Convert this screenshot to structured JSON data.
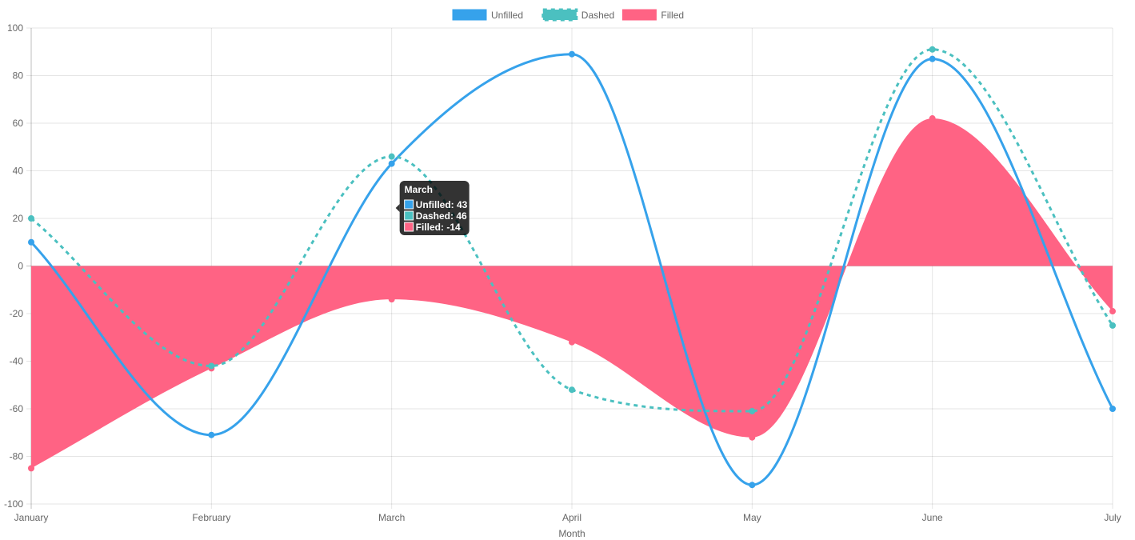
{
  "chart_data": {
    "type": "line",
    "categories": [
      "January",
      "February",
      "March",
      "April",
      "May",
      "June",
      "July"
    ],
    "xlabel": "Month",
    "ylabel": "",
    "ylim": [
      -100,
      100
    ],
    "yticks": [
      100,
      80,
      60,
      40,
      20,
      0,
      -20,
      -40,
      -60,
      -80,
      -100
    ],
    "grid": true,
    "legend_position": "top",
    "series": [
      {
        "name": "Unfilled",
        "values": [
          10,
          -71,
          43,
          89,
          -92,
          87,
          -60
        ],
        "color": "#36a2eb",
        "style": "solid",
        "fill": false
      },
      {
        "name": "Dashed",
        "values": [
          20,
          -42,
          46,
          -52,
          -61,
          91,
          -25
        ],
        "color": "#4bc0c0",
        "style": "dashed",
        "fill": false
      },
      {
        "name": "Filled",
        "values": [
          -85,
          -43,
          -14,
          -32,
          -72,
          62,
          -19
        ],
        "color": "#ff6384",
        "style": "solid",
        "fill": true
      }
    ],
    "tooltip": {
      "title": "March",
      "lines": [
        "Unfilled: 43",
        "Dashed: 46",
        "Filled: -14"
      ]
    }
  }
}
